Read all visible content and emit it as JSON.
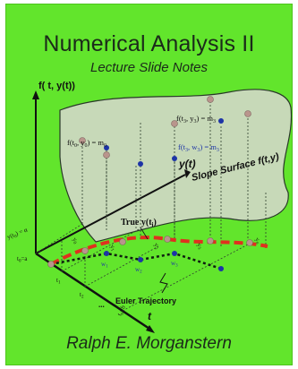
{
  "cover": {
    "title": "Numerical Analysis II",
    "subtitle": "Lecture Slide Notes",
    "author": "Ralph E. Morganstern"
  },
  "diagram": {
    "vertical_axis_label": "f( t, y(t))",
    "y_axis_label": "y(t)",
    "t_axis_label": "t",
    "surface_label": "Slope Surface f(t,y)",
    "true_curve_label": "True y(t",
    "true_curve_sub": "i",
    "true_curve_close": ")",
    "euler_label": "Euler Trajectory",
    "initial_label": "y(t",
    "initial_sub": "0",
    "initial_eq": ") = α",
    "f0_label": "f(t",
    "f0_rest": ", y",
    "f0_close": ") = m",
    "f0_eq_sub": "0",
    "f3_label": "f(t",
    "f3_rest": ", y",
    "f3_close": ") = m",
    "f3_sub": "3",
    "f3w_label": "f(t",
    "f3w_rest": ", w",
    "f3w_close": ") = m",
    "f3w_sub": "3",
    "t0_label": "t",
    "t0_sub": "0",
    "t0_eq": "=a",
    "t1_label": "t",
    "t1_sub": "1",
    "t2_label": "t",
    "t2_sub": "2",
    "dots_label": "...",
    "tn_label": "t",
    "tn_sub": "n",
    "tn_eq": "=b",
    "y_labels": [
      "y",
      "y",
      "y",
      "y"
    ],
    "y_subs": [
      "0",
      "1",
      "2",
      "3"
    ],
    "w_labels": [
      "w",
      "w",
      "w"
    ],
    "w_subs": [
      "1",
      "2",
      "3"
    ],
    "yn_label": "y",
    "yn_sub": "n",
    "colors": {
      "background": "#62e52c",
      "surface": "#c7d9b8",
      "true_curve": "#e0301e",
      "euler": "#0f1e10",
      "surface_point": "#b9958c",
      "blue_point": "#1d34a6",
      "axis": "#111111"
    }
  }
}
